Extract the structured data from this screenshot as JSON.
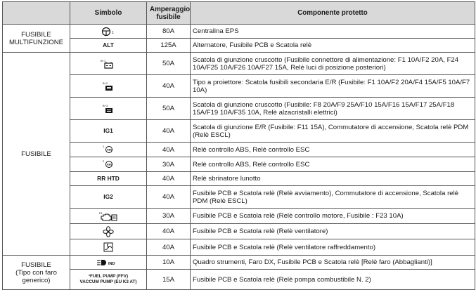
{
  "headers": {
    "group": "",
    "symbol": "Simbolo",
    "amperage": "Amperaggio\nfusibile",
    "component": "Componente protetto"
  },
  "groups": {
    "multi": "FUSIBILE\nMULTIFUNZIONE",
    "fuse": "FUSIBILE",
    "fuse_generic": "FUSIBILE\n(Tipo con faro\ngenerico)"
  },
  "rows": [
    {
      "symbol": "steering-eps-icon",
      "symbol_text": "",
      "amp": "80A",
      "component": "Centralina EPS"
    },
    {
      "symbol": "",
      "symbol_text": "ALT",
      "amp": "125A",
      "component": "Alternatore, Fusibile PCB e Scatola relè"
    },
    {
      "symbol": "battery-junction-icon",
      "symbol_text": "",
      "amp": "50A",
      "component": "Scatola di giunzione cruscotto (Fusibile connettore di alimentazione: F1 10A/F2 20A, F24 10A/F25 10A/F26 10A/F27 15A, Relè luci di posizione posteriori)"
    },
    {
      "symbol": "junction-box-icon",
      "symbol_text": "",
      "amp": "40A",
      "component": "Tipo a proiettore: Scatola fusibili secondaria E/R (Fusibile: F1 10A/F2 20A/F4 15A/F5 10A/F7 10A)"
    },
    {
      "symbol": "junction-box-icon",
      "symbol_text": "",
      "amp": "50A",
      "component": "Scatola di giunzione cruscotto (Fusibile: F8 20A/F9 25A/F10 15A/F16 15A/F17 25A/F18 15A/F19 10A/F35 10A, Relè alzacristalli elettrici)"
    },
    {
      "symbol": "",
      "symbol_text": "IG1",
      "amp": "40A",
      "component": "Scatola di giunzione E/R (Fusibile: F11 15A), Commutatore di accensione, Scatola relè PDM (Relè ESCL)"
    },
    {
      "symbol": "abs-icon",
      "symbol_text": "",
      "amp": "40A",
      "component": "Relè controllo ABS, Relè controllo ESC"
    },
    {
      "symbol": "abs-icon",
      "symbol_text": "",
      "amp": "30A",
      "component": "Relè controllo ABS, Relè controllo ESC"
    },
    {
      "symbol": "",
      "symbol_text": "RR HTD",
      "amp": "40A",
      "component": "Relè sbrinatore lunotto"
    },
    {
      "symbol": "",
      "symbol_text": "IG2",
      "amp": "40A",
      "component": "Fusibile PCB e Scatola relè (Relè avviamento), Commutatore di accensione, Scatola relè PDM (Relè ESCL)"
    },
    {
      "symbol": "engine-control-icon",
      "symbol_text": "",
      "amp": "30A",
      "component": "Fusibile PCB e Scatola relè (Relè controllo motore, Fusibile : F23 10A)"
    },
    {
      "symbol": "fan-icon",
      "symbol_text": "",
      "amp": "40A",
      "component": "Fusibile PCB e Scatola relè (Relè ventilatore)"
    },
    {
      "symbol": "cooling-fan-icon",
      "symbol_text": "",
      "amp": "40A",
      "component": "Fusibile PCB e Scatola relè (Relè ventilatore raffreddamento)"
    },
    {
      "symbol": "headlamp-high-beam-icon",
      "symbol_text": "",
      "amp": "10A",
      "component": "Quadro strumenti, Faro DX, Fusibile PCB e Scatola relè [Relè faro (Abbaglianti)]"
    },
    {
      "symbol": "",
      "symbol_text": "¹FUEL PUMP (FFV)\nVACCUM PUMP (EU K3 AT)",
      "amp": "15A",
      "component": "Fusibile PCB e Scatola relè (Relè pompa combustibile N. 2)"
    }
  ]
}
